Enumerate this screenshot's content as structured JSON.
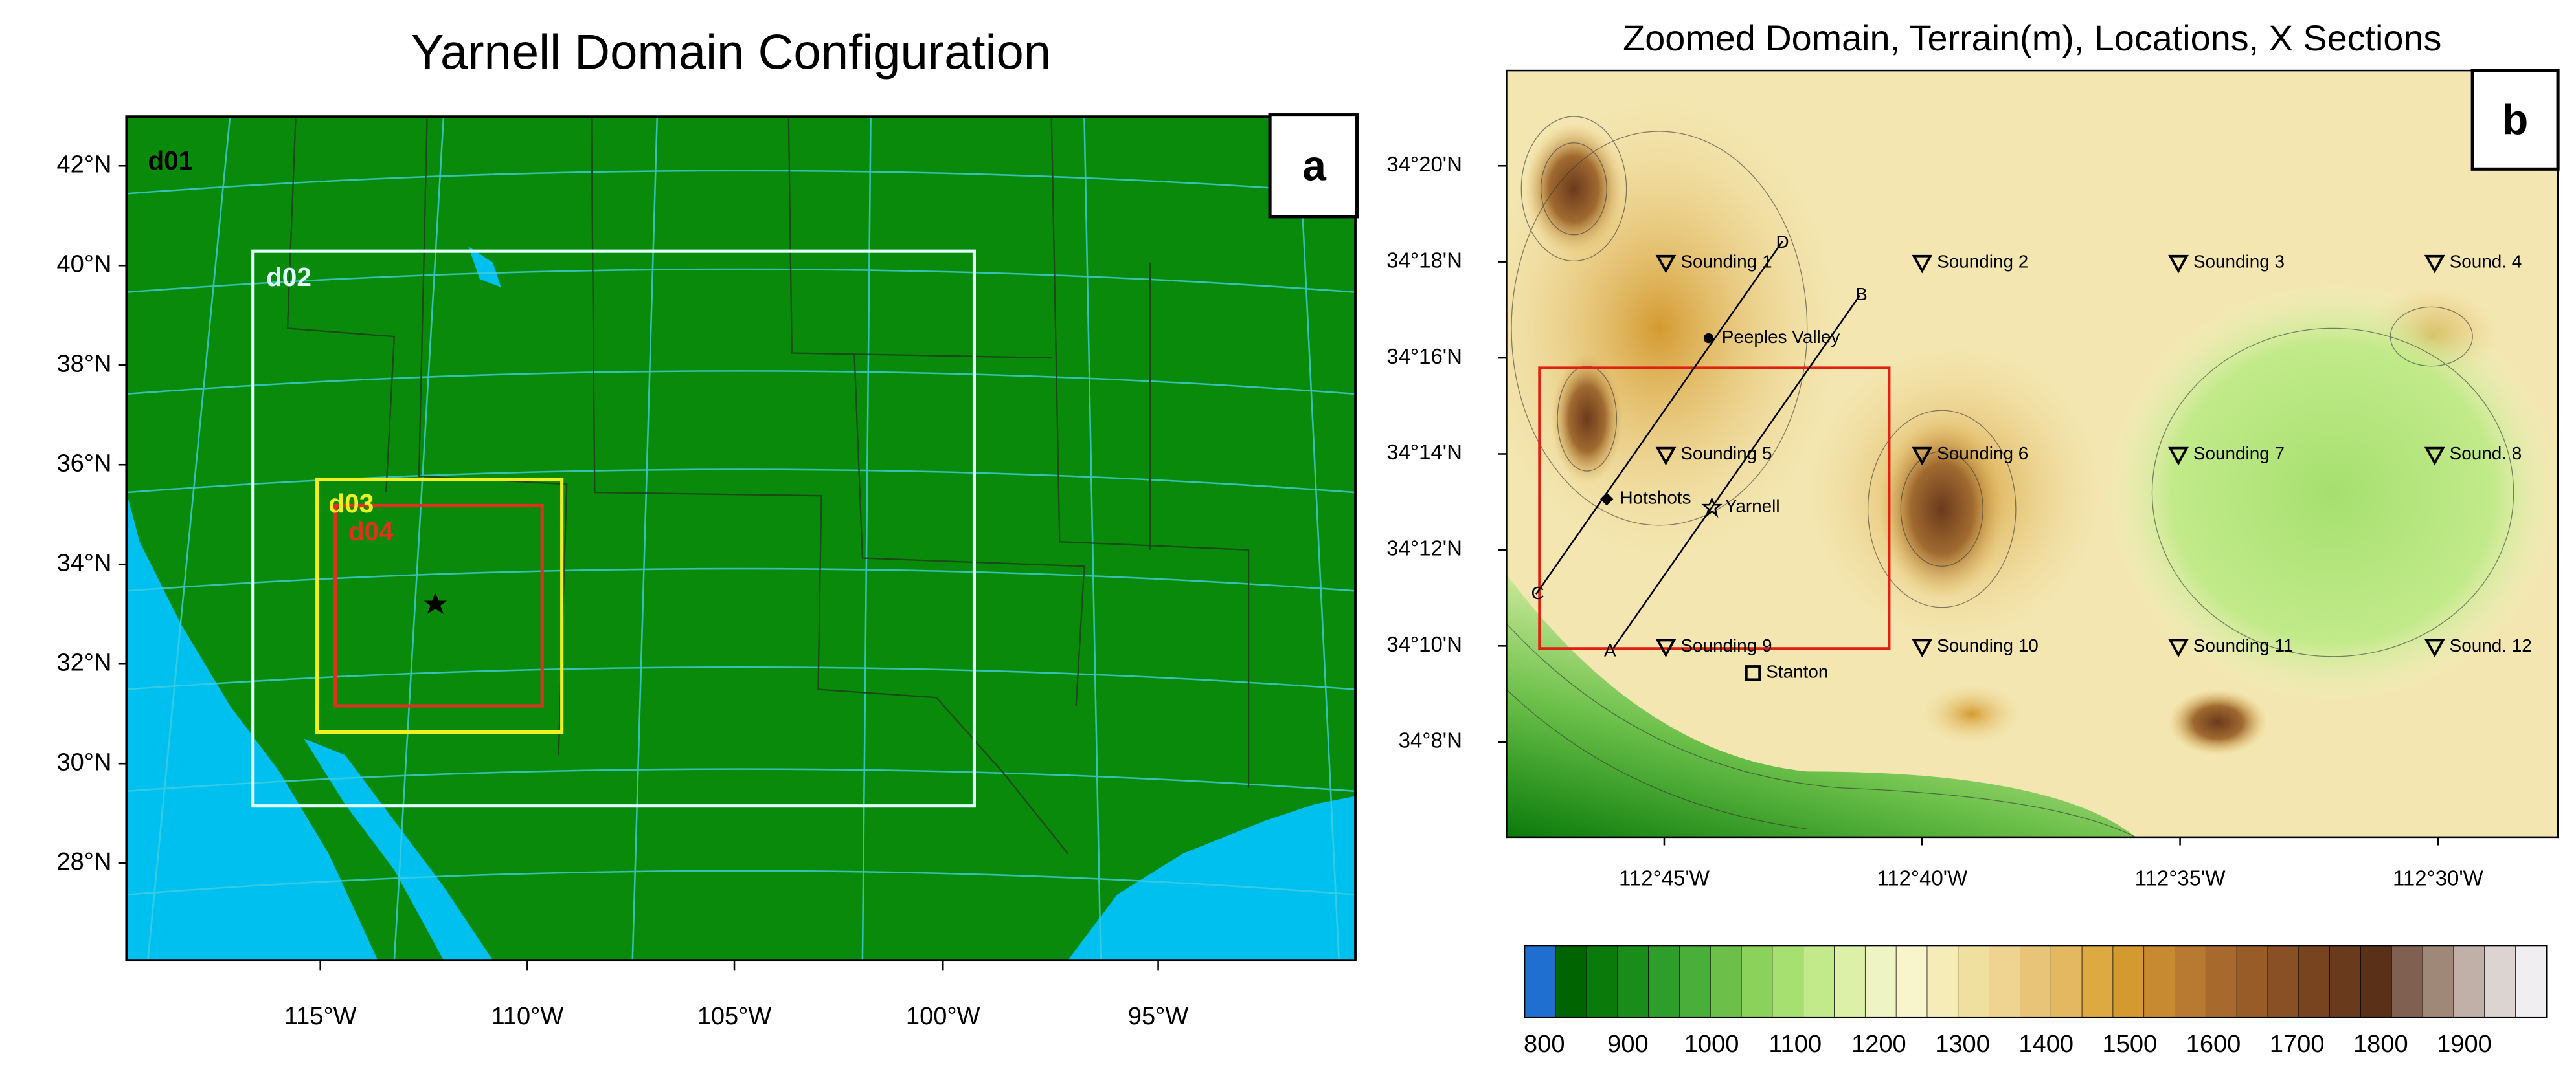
{
  "panel_a": {
    "title": "Yarnell Domain Configuration",
    "label": "a",
    "domains": [
      "d01",
      "d02",
      "d03",
      "d04"
    ],
    "yticks": [
      "42°N",
      "40°N",
      "38°N",
      "36°N",
      "34°N",
      "32°N",
      "30°N",
      "28°N"
    ],
    "xticks": [
      "115°W",
      "110°W",
      "105°W",
      "100°W",
      "95°W"
    ]
  },
  "panel_b": {
    "title": "Zoomed Domain, Terrain(m), Locations, X Sections",
    "label": "b",
    "yticks": [
      "34°20'N",
      "34°18'N",
      "34°16'N",
      "34°14'N",
      "34°12'N",
      "34°10'N",
      "34°8'N"
    ],
    "xticks": [
      "112°45'W",
      "112°40'W",
      "112°35'W",
      "112°30'W"
    ],
    "soundings": [
      "Sounding 1",
      "Sounding 2",
      "Sounding 3",
      "Sound. 4",
      "Sounding 5",
      "Sounding 6",
      "Sounding 7",
      "Sound. 8",
      "Sounding 9",
      "Sounding 10",
      "Sounding 11",
      "Sound. 12"
    ],
    "places": [
      "Peeples Valley",
      "Hotshots",
      "Yarnell",
      "Stanton"
    ],
    "sections": [
      "A",
      "B",
      "C",
      "D"
    ],
    "colorbar": {
      "labels": [
        800,
        900,
        1000,
        1100,
        1200,
        1300,
        1400,
        1500,
        1600,
        1700,
        1800,
        1900
      ],
      "colors": [
        "#1f6fd0",
        "#006400",
        "#0a7a0a",
        "#1a8c1a",
        "#2e9e2a",
        "#4aae3a",
        "#6cc04a",
        "#8ad25a",
        "#a6e070",
        "#c2ea8a",
        "#dcf0a8",
        "#eef4c4",
        "#f8f4cc",
        "#f6ecb8",
        "#f0e0a0",
        "#eed490",
        "#e8c478",
        "#e4b860",
        "#dcaa40",
        "#d49a30",
        "#c88a30",
        "#b87a30",
        "#a86a2c",
        "#985c28",
        "#885024",
        "#784420",
        "#6a3a1c",
        "#5a3018",
        "#806050",
        "#a08878",
        "#c0b0a8",
        "#dcd4d0",
        "#f0eef0"
      ]
    }
  }
}
